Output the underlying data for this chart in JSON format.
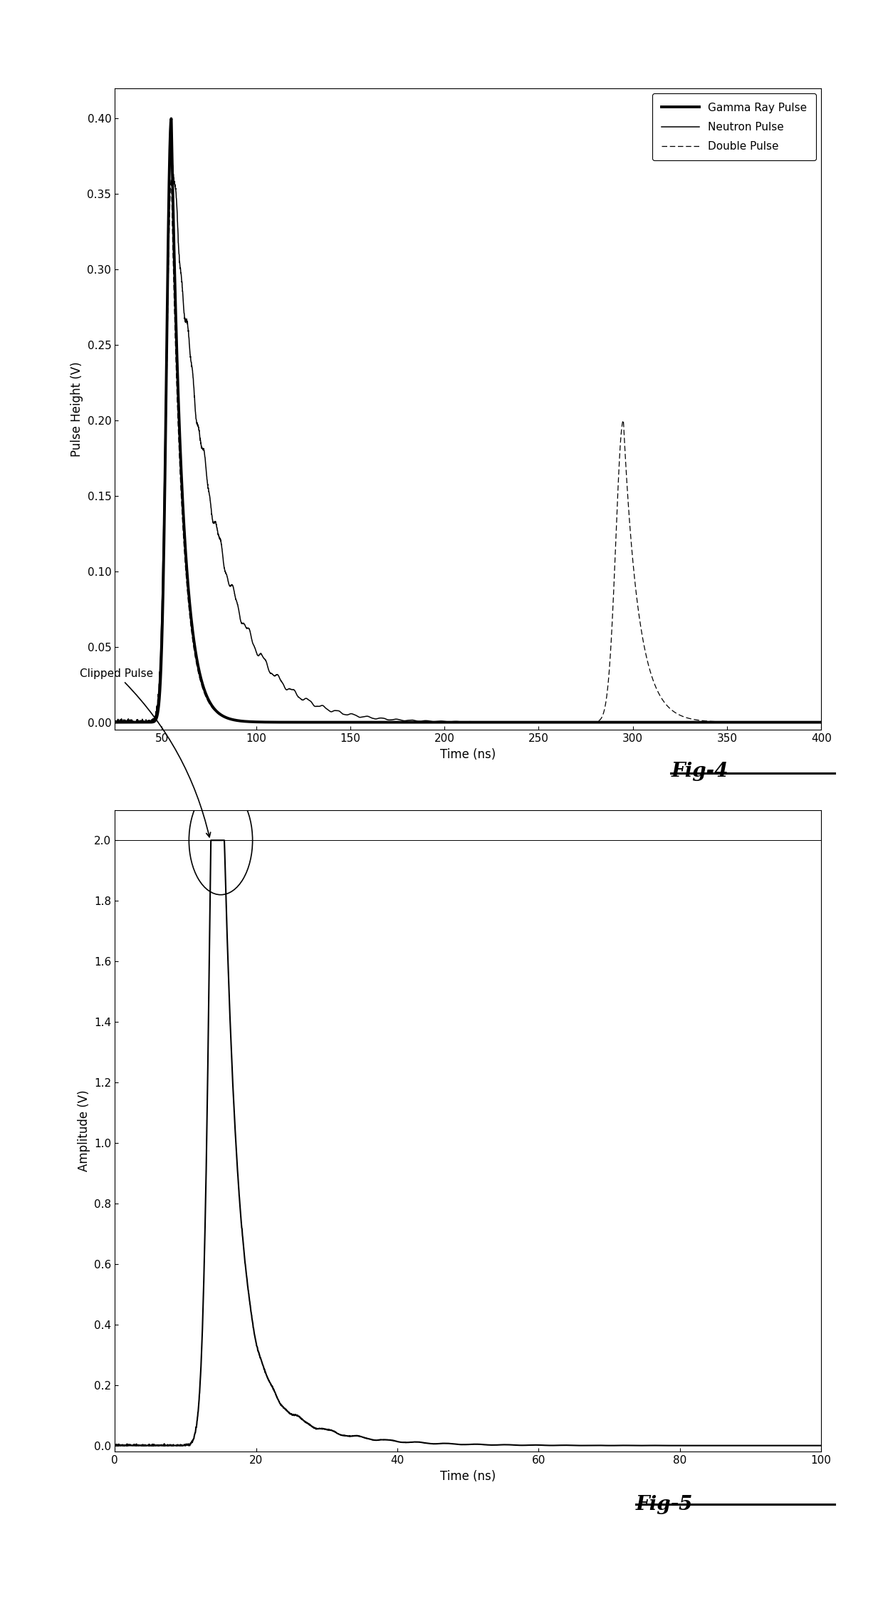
{
  "fig4": {
    "xlabel": "Time (ns)",
    "ylabel": "Pulse Height (V)",
    "xlim": [
      25,
      400
    ],
    "ylim": [
      -0.005,
      0.42
    ],
    "yticks": [
      0,
      0.05,
      0.1,
      0.15,
      0.2,
      0.25,
      0.3,
      0.35,
      0.4
    ],
    "xticks": [
      50,
      100,
      150,
      200,
      250,
      300,
      350,
      400
    ],
    "legend_entries": [
      "Gamma Ray Pulse",
      "Neutron Pulse",
      "Double Pulse"
    ],
    "gamma_peak": 55,
    "gamma_rise": 2.5,
    "gamma_fall": 6.0,
    "gamma_amp": 0.4,
    "neutron_peak": 55,
    "neutron_rise": 2.8,
    "neutron_fall": 22.0,
    "neutron_amp": 0.38,
    "double_peak1": 55,
    "double_fall1": 6.0,
    "double_amp1": 0.36,
    "double_peak2": 295,
    "double_rise2": 4.0,
    "double_fall2": 8.0,
    "double_amp2": 0.2
  },
  "fig5": {
    "xlabel": "Time (ns)",
    "ylabel": "Amplitude (V)",
    "xlim": [
      0,
      100
    ],
    "ylim": [
      -0.02,
      2.1
    ],
    "yticks": [
      0,
      0.2,
      0.4,
      0.6,
      0.8,
      1.0,
      1.2,
      1.4,
      1.6,
      1.8,
      2.0
    ],
    "xticks": [
      0,
      20,
      40,
      60,
      80,
      100
    ],
    "clip_peak": 15.0,
    "clip_level": 2.0,
    "annotation_text": "Clipped Pulse"
  },
  "fig4_label": "Fig-4",
  "fig5_label": "Fig-5",
  "bg_color": "#ffffff",
  "line_color": "#000000"
}
